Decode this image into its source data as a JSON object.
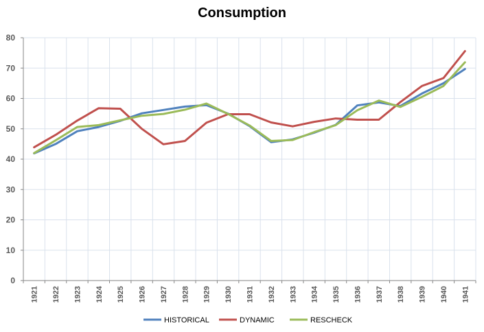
{
  "chart_data": {
    "type": "line",
    "title": "Consumption",
    "xlabel": "",
    "ylabel": "",
    "x": [
      "1921",
      "1922",
      "1923",
      "1924",
      "1925",
      "1926",
      "1927",
      "1928",
      "1929",
      "1930",
      "1931",
      "1932",
      "1933",
      "1934",
      "1935",
      "1936",
      "1937",
      "1938",
      "1939",
      "1940",
      "1941"
    ],
    "ylim": [
      0,
      80
    ],
    "yticks": [
      0,
      10,
      20,
      30,
      40,
      50,
      60,
      70,
      80
    ],
    "grid": true,
    "legend_position": "bottom",
    "series": [
      {
        "name": "HISTORICAL",
        "color": "#4F81BD",
        "values": [
          41.9,
          45.0,
          49.2,
          50.6,
          52.6,
          55.1,
          56.2,
          57.3,
          57.8,
          55.0,
          50.9,
          45.6,
          46.5,
          48.7,
          51.3,
          57.7,
          58.7,
          57.5,
          61.6,
          65.0,
          69.7
        ]
      },
      {
        "name": "DYNAMIC",
        "color": "#C0504D",
        "values": [
          43.9,
          48.0,
          52.7,
          56.8,
          56.6,
          50.0,
          44.9,
          46.0,
          52.0,
          54.8,
          54.8,
          52.1,
          50.8,
          52.3,
          53.4,
          53.0,
          53.0,
          58.8,
          64.1,
          66.7,
          75.6
        ]
      },
      {
        "name": "RESCHECK",
        "color": "#9BBB59",
        "values": [
          42.0,
          46.2,
          50.6,
          51.2,
          52.8,
          54.3,
          54.9,
          56.3,
          58.3,
          54.9,
          51.1,
          46.0,
          46.3,
          48.9,
          51.2,
          56.1,
          59.3,
          57.2,
          60.5,
          64.1,
          71.9
        ]
      }
    ]
  }
}
